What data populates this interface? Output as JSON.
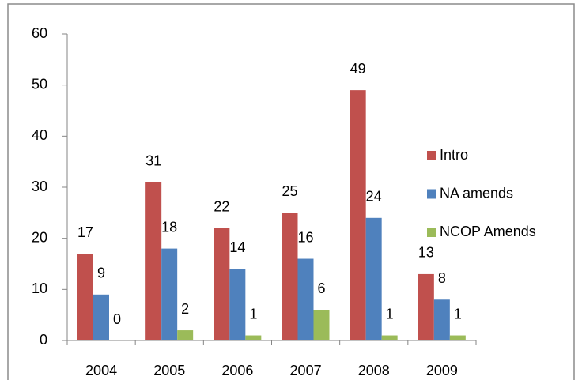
{
  "chart_data": {
    "type": "bar",
    "categories": [
      "2004",
      "2005",
      "2006",
      "2007",
      "2008",
      "2009"
    ],
    "series": [
      {
        "name": "Intro",
        "color": "#c0504d",
        "values": [
          17,
          31,
          22,
          25,
          49,
          13
        ]
      },
      {
        "name": "NA amends",
        "color": "#4f81bd",
        "values": [
          9,
          18,
          14,
          16,
          24,
          8
        ]
      },
      {
        "name": "NCOP Amends",
        "color": "#9bbb59",
        "values": [
          0,
          2,
          1,
          6,
          1,
          1
        ]
      }
    ],
    "ylim": [
      0,
      60
    ],
    "yticks": [
      0,
      10,
      20,
      30,
      40,
      50,
      60
    ],
    "grid": false,
    "legend": "right"
  }
}
